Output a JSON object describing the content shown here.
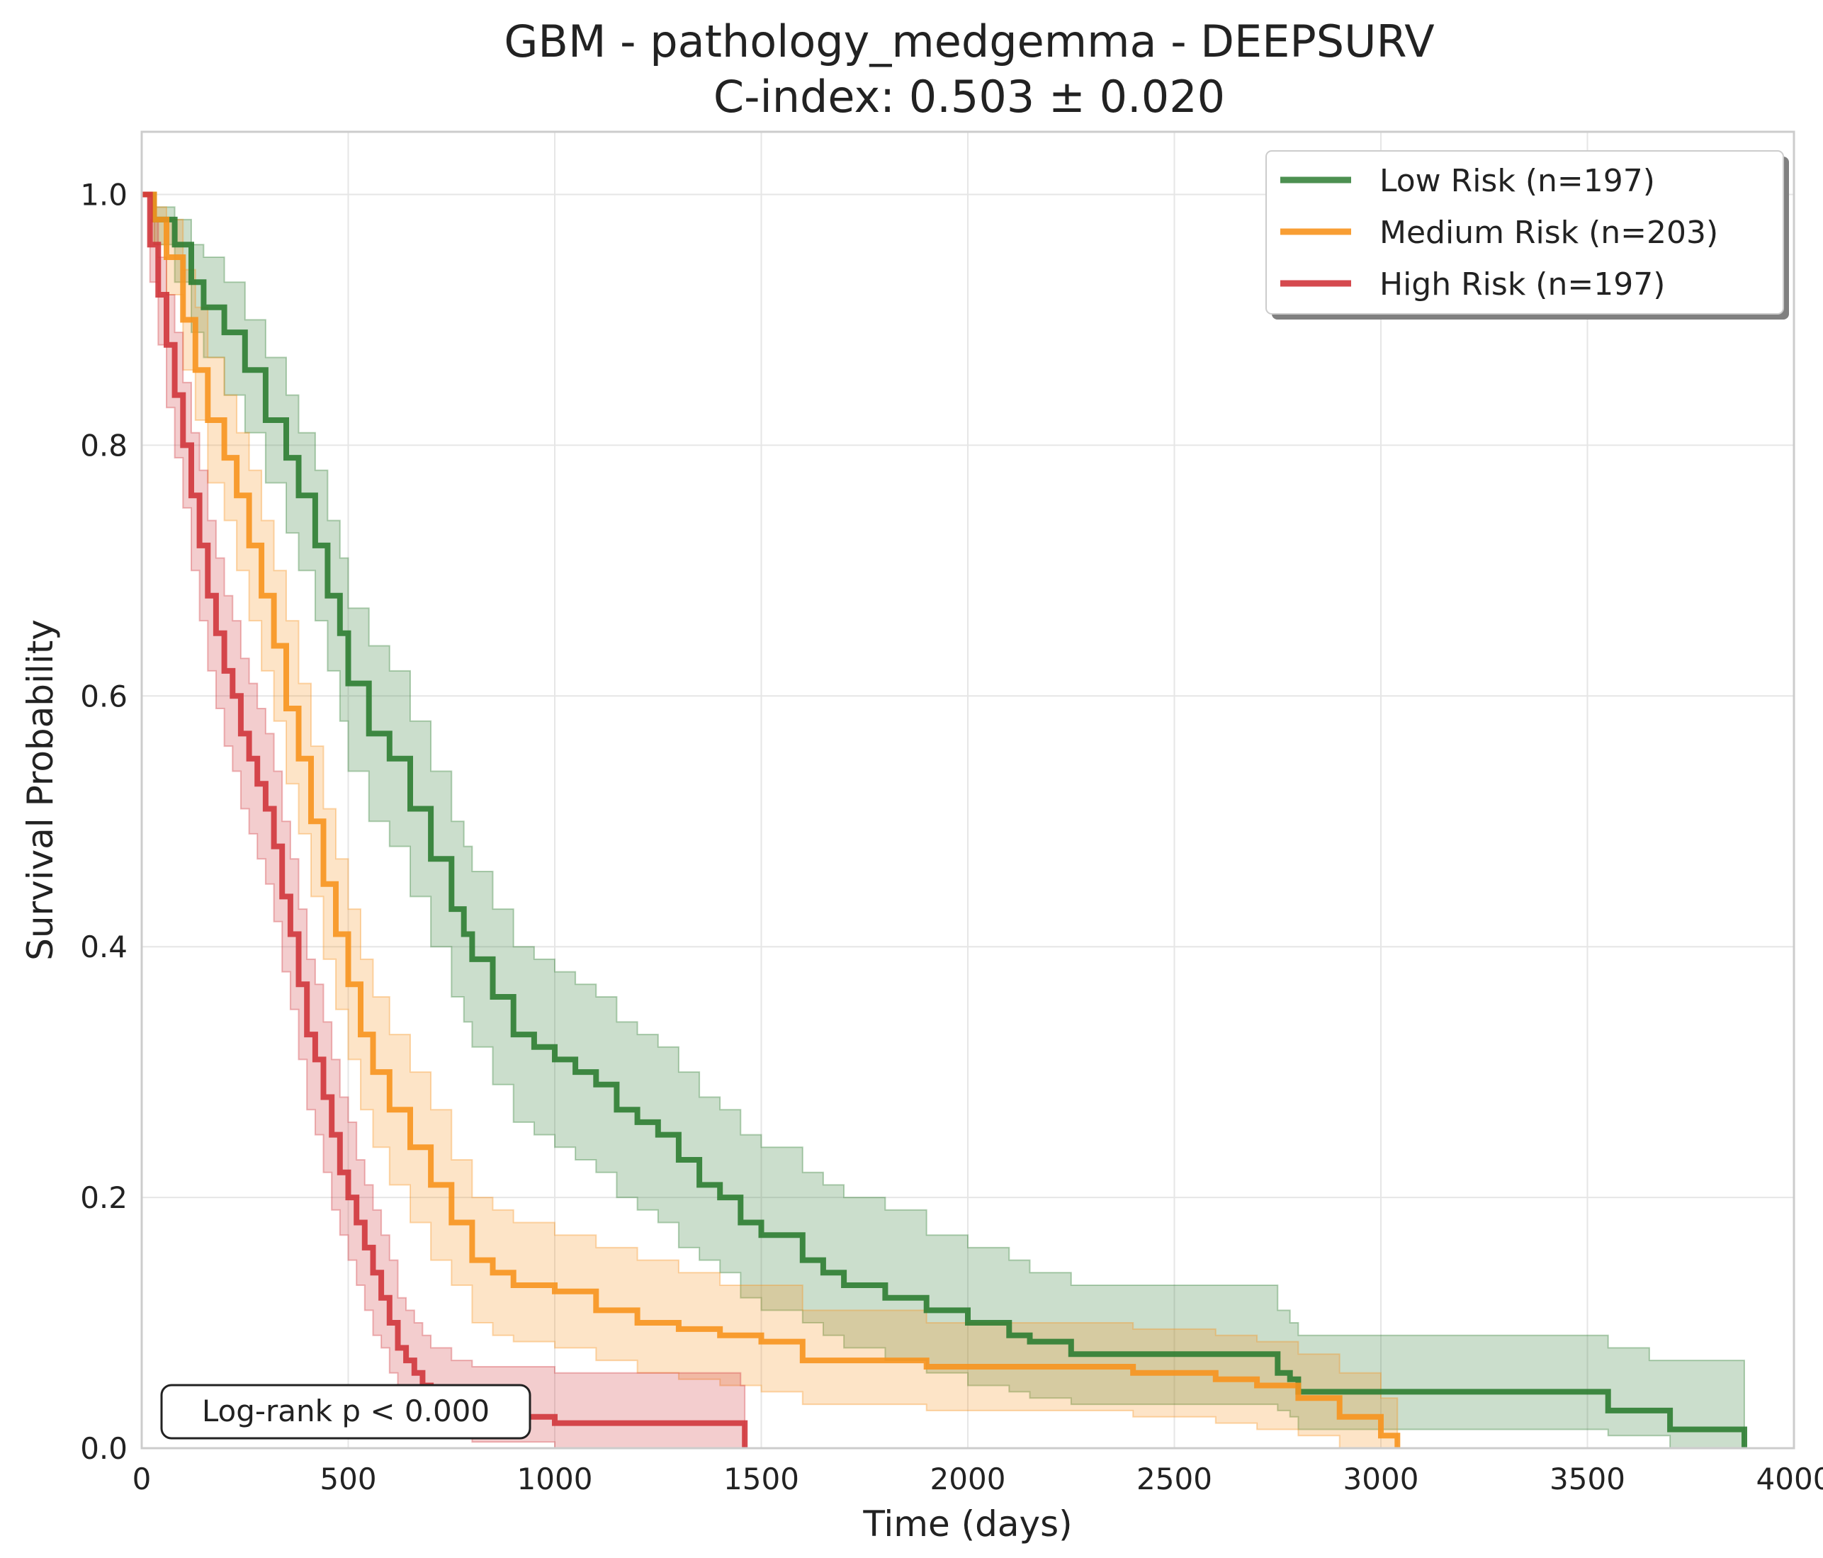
{
  "chart_data": {
    "type": "line",
    "subtype": "kaplan-meier",
    "title": "GBM - pathology_medgemma - DEEPSURV",
    "subtitle": "C-index: 0.503 ± 0.020",
    "xlabel": "Time (days)",
    "ylabel": "Survival Probability",
    "xlim": [
      0,
      4000
    ],
    "ylim": [
      0,
      1.05
    ],
    "xticks": [
      0,
      500,
      1000,
      1500,
      2000,
      2500,
      3000,
      3500,
      4000
    ],
    "yticks": [
      0.0,
      0.2,
      0.4,
      0.6,
      0.8,
      1.0
    ],
    "xtick_labels": [
      "0",
      "500",
      "1000",
      "1500",
      "2000",
      "2500",
      "3000",
      "3500",
      "4000"
    ],
    "ytick_labels": [
      "0.0",
      "0.2",
      "0.4",
      "0.6",
      "0.8",
      "1.0"
    ],
    "grid": true,
    "legend_position": "top-right",
    "annotation": "Log-rank p < 0.000",
    "series": [
      {
        "name": "Low Risk (n=197)",
        "color": "#2e7d32",
        "x": [
          0,
          30,
          80,
          120,
          150,
          200,
          250,
          300,
          350,
          380,
          420,
          450,
          480,
          500,
          550,
          600,
          650,
          700,
          750,
          780,
          800,
          850,
          900,
          950,
          1000,
          1050,
          1100,
          1150,
          1200,
          1250,
          1300,
          1350,
          1400,
          1450,
          1500,
          1600,
          1650,
          1700,
          1800,
          1900,
          2000,
          2100,
          2150,
          2250,
          2400,
          2600,
          2750,
          2780,
          2800,
          3000,
          3200,
          3500,
          3550,
          3650,
          3700,
          3880
        ],
        "y": [
          1.0,
          0.98,
          0.96,
          0.93,
          0.91,
          0.89,
          0.86,
          0.82,
          0.79,
          0.76,
          0.72,
          0.68,
          0.65,
          0.61,
          0.57,
          0.55,
          0.51,
          0.47,
          0.43,
          0.41,
          0.39,
          0.36,
          0.33,
          0.32,
          0.31,
          0.3,
          0.29,
          0.27,
          0.26,
          0.25,
          0.23,
          0.21,
          0.2,
          0.18,
          0.17,
          0.15,
          0.14,
          0.13,
          0.12,
          0.11,
          0.1,
          0.09,
          0.085,
          0.075,
          0.075,
          0.075,
          0.06,
          0.055,
          0.045,
          0.045,
          0.045,
          0.045,
          0.03,
          0.03,
          0.015,
          0.0
        ],
        "ci_lower": [
          1.0,
          0.96,
          0.93,
          0.89,
          0.87,
          0.84,
          0.81,
          0.77,
          0.73,
          0.7,
          0.66,
          0.62,
          0.58,
          0.54,
          0.5,
          0.48,
          0.44,
          0.4,
          0.36,
          0.34,
          0.32,
          0.29,
          0.26,
          0.25,
          0.24,
          0.23,
          0.22,
          0.2,
          0.19,
          0.18,
          0.16,
          0.15,
          0.14,
          0.12,
          0.11,
          0.1,
          0.09,
          0.08,
          0.07,
          0.06,
          0.05,
          0.045,
          0.04,
          0.035,
          0.035,
          0.035,
          0.03,
          0.025,
          0.015,
          0.015,
          0.015,
          0.015,
          0.01,
          0.01,
          0.0,
          0.0
        ],
        "ci_upper": [
          1.0,
          0.99,
          0.98,
          0.96,
          0.95,
          0.93,
          0.9,
          0.87,
          0.84,
          0.81,
          0.78,
          0.74,
          0.71,
          0.67,
          0.64,
          0.62,
          0.58,
          0.54,
          0.5,
          0.48,
          0.46,
          0.43,
          0.4,
          0.39,
          0.38,
          0.37,
          0.36,
          0.34,
          0.33,
          0.32,
          0.3,
          0.28,
          0.27,
          0.25,
          0.24,
          0.22,
          0.21,
          0.2,
          0.19,
          0.17,
          0.16,
          0.15,
          0.14,
          0.13,
          0.13,
          0.13,
          0.11,
          0.1,
          0.09,
          0.09,
          0.09,
          0.09,
          0.08,
          0.07,
          0.07,
          0.07
        ]
      },
      {
        "name": "Medium Risk (n=203)",
        "color": "#f7931e",
        "x": [
          0,
          30,
          60,
          100,
          130,
          160,
          200,
          230,
          260,
          290,
          320,
          350,
          380,
          410,
          440,
          470,
          500,
          530,
          560,
          600,
          650,
          700,
          750,
          800,
          850,
          900,
          1000,
          1100,
          1200,
          1300,
          1400,
          1500,
          1600,
          1700,
          1800,
          1900,
          2000,
          2200,
          2400,
          2600,
          2700,
          2800,
          2900,
          3000,
          3040
        ],
        "y": [
          1.0,
          0.98,
          0.95,
          0.9,
          0.86,
          0.82,
          0.79,
          0.76,
          0.72,
          0.68,
          0.64,
          0.59,
          0.55,
          0.5,
          0.45,
          0.41,
          0.37,
          0.33,
          0.3,
          0.27,
          0.24,
          0.21,
          0.18,
          0.15,
          0.14,
          0.13,
          0.125,
          0.11,
          0.1,
          0.095,
          0.09,
          0.085,
          0.07,
          0.07,
          0.07,
          0.065,
          0.065,
          0.065,
          0.06,
          0.055,
          0.05,
          0.04,
          0.025,
          0.01,
          0.0
        ],
        "ci_lower": [
          1.0,
          0.96,
          0.92,
          0.86,
          0.82,
          0.77,
          0.74,
          0.7,
          0.66,
          0.62,
          0.58,
          0.53,
          0.49,
          0.44,
          0.39,
          0.35,
          0.31,
          0.27,
          0.24,
          0.21,
          0.18,
          0.15,
          0.13,
          0.1,
          0.09,
          0.085,
          0.08,
          0.07,
          0.06,
          0.055,
          0.05,
          0.045,
          0.035,
          0.035,
          0.035,
          0.03,
          0.03,
          0.03,
          0.025,
          0.02,
          0.015,
          0.01,
          0.0,
          0.0,
          0.0
        ],
        "ci_upper": [
          1.0,
          0.99,
          0.98,
          0.94,
          0.91,
          0.87,
          0.84,
          0.81,
          0.78,
          0.74,
          0.7,
          0.66,
          0.61,
          0.56,
          0.51,
          0.47,
          0.43,
          0.39,
          0.36,
          0.33,
          0.3,
          0.27,
          0.23,
          0.2,
          0.19,
          0.18,
          0.17,
          0.16,
          0.15,
          0.14,
          0.13,
          0.13,
          0.11,
          0.11,
          0.11,
          0.1,
          0.1,
          0.1,
          0.095,
          0.09,
          0.085,
          0.075,
          0.06,
          0.04,
          0.04
        ]
      },
      {
        "name": "High Risk (n=197)",
        "color": "#d0363c",
        "x": [
          0,
          20,
          40,
          60,
          80,
          100,
          120,
          140,
          160,
          180,
          200,
          220,
          240,
          260,
          280,
          300,
          320,
          340,
          360,
          380,
          400,
          420,
          440,
          460,
          480,
          500,
          520,
          540,
          560,
          580,
          600,
          620,
          640,
          660,
          680,
          700,
          750,
          800,
          1000,
          1200,
          1400,
          1450,
          1460
        ],
        "y": [
          1.0,
          0.96,
          0.92,
          0.88,
          0.84,
          0.8,
          0.76,
          0.72,
          0.68,
          0.65,
          0.62,
          0.6,
          0.57,
          0.55,
          0.53,
          0.51,
          0.48,
          0.44,
          0.41,
          0.37,
          0.33,
          0.31,
          0.28,
          0.25,
          0.22,
          0.2,
          0.18,
          0.16,
          0.14,
          0.12,
          0.1,
          0.08,
          0.07,
          0.06,
          0.05,
          0.04,
          0.03,
          0.025,
          0.02,
          0.02,
          0.02,
          0.02,
          0.0
        ],
        "ci_lower": [
          1.0,
          0.93,
          0.88,
          0.83,
          0.79,
          0.75,
          0.7,
          0.66,
          0.62,
          0.59,
          0.56,
          0.54,
          0.51,
          0.49,
          0.47,
          0.45,
          0.42,
          0.38,
          0.35,
          0.31,
          0.27,
          0.25,
          0.22,
          0.19,
          0.17,
          0.15,
          0.13,
          0.11,
          0.09,
          0.08,
          0.06,
          0.05,
          0.04,
          0.03,
          0.02,
          0.015,
          0.01,
          0.005,
          0.0,
          0.0,
          0.0,
          0.0,
          0.0
        ],
        "ci_upper": [
          1.0,
          0.98,
          0.95,
          0.92,
          0.89,
          0.85,
          0.81,
          0.78,
          0.74,
          0.71,
          0.68,
          0.66,
          0.63,
          0.61,
          0.59,
          0.57,
          0.54,
          0.5,
          0.47,
          0.43,
          0.39,
          0.37,
          0.34,
          0.31,
          0.28,
          0.26,
          0.23,
          0.21,
          0.19,
          0.17,
          0.15,
          0.12,
          0.11,
          0.1,
          0.09,
          0.08,
          0.07,
          0.065,
          0.06,
          0.06,
          0.06,
          0.05,
          0.05
        ]
      }
    ]
  }
}
